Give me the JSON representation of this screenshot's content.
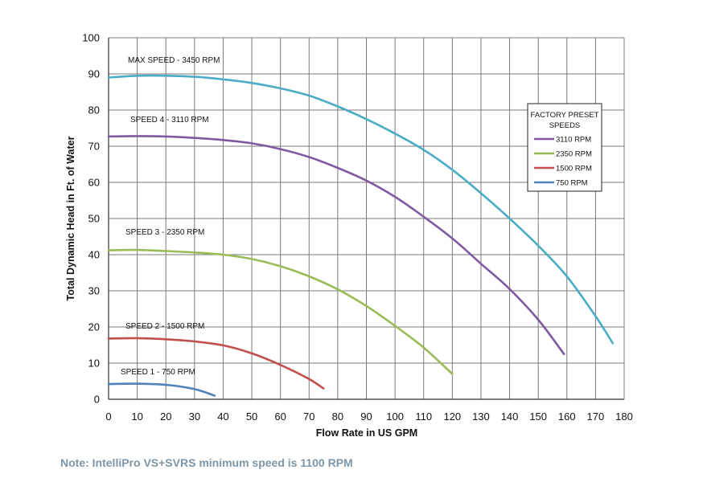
{
  "chart_data": {
    "type": "line",
    "xlabel": "Flow Rate in US GPM",
    "ylabel": "Total Dynamic Head in Ft. of Water",
    "xlim": [
      0,
      180
    ],
    "ylim": [
      0,
      100
    ],
    "xticks": [
      0,
      10,
      20,
      30,
      40,
      50,
      60,
      70,
      80,
      90,
      100,
      110,
      120,
      130,
      140,
      150,
      160,
      170,
      180
    ],
    "yticks": [
      0,
      10,
      20,
      30,
      40,
      50,
      60,
      70,
      80,
      90,
      100
    ],
    "grid": true,
    "legend": {
      "title_line1": "FACTORY PRESET",
      "title_line2": "SPEEDS",
      "placement": "top-right",
      "entries": [
        {
          "label": "3110 RPM",
          "color": "#7f5aa2"
        },
        {
          "label": "2350 RPM",
          "color": "#9bbb59"
        },
        {
          "label": "1500 RPM",
          "color": "#c0504d"
        },
        {
          "label": "750 RPM",
          "color": "#4f81bd"
        }
      ]
    },
    "series": [
      {
        "name": "MAX SPEED - 3450 RPM",
        "color": "#4bacc6",
        "x": [
          0,
          10,
          20,
          30,
          40,
          50,
          60,
          70,
          80,
          90,
          100,
          110,
          120,
          130,
          140,
          150,
          160,
          170,
          176
        ],
        "y": [
          89,
          89.5,
          89.5,
          89.2,
          88.5,
          87.5,
          86,
          84,
          81,
          77.5,
          73.5,
          69,
          63.5,
          57,
          50,
          42.5,
          34,
          23,
          15.5
        ]
      },
      {
        "name": "SPEED 4 - 3110 RPM",
        "color": "#7f5aa2",
        "x": [
          0,
          10,
          20,
          30,
          40,
          50,
          60,
          70,
          80,
          90,
          100,
          110,
          120,
          130,
          140,
          150,
          159
        ],
        "y": [
          72.7,
          72.8,
          72.7,
          72.3,
          71.7,
          70.8,
          69.2,
          67,
          64,
          60.5,
          56,
          50.5,
          44.5,
          37.5,
          30.5,
          22,
          12.5
        ]
      },
      {
        "name": "SPEED 3 - 2350 RPM",
        "color": "#9bbb59",
        "x": [
          0,
          10,
          20,
          30,
          40,
          50,
          60,
          70,
          80,
          90,
          100,
          110,
          120
        ],
        "y": [
          41.2,
          41.3,
          41,
          40.6,
          40,
          38.8,
          36.8,
          34,
          30.4,
          25.8,
          20.3,
          14.3,
          7
        ]
      },
      {
        "name": "SPEED 2 - 1500 RPM",
        "color": "#c0504d",
        "x": [
          0,
          10,
          20,
          30,
          40,
          50,
          60,
          70,
          75
        ],
        "y": [
          16.8,
          16.9,
          16.6,
          16,
          14.9,
          12.7,
          9.5,
          5.6,
          3
        ]
      },
      {
        "name": "SPEED 1 - 750 RPM",
        "color": "#4f81bd",
        "x": [
          0,
          10,
          20,
          30,
          37
        ],
        "y": [
          4.2,
          4.3,
          4,
          2.8,
          1
        ]
      }
    ],
    "curve_labels": [
      {
        "text": "MAX SPEED - 3450 RPM",
        "series": 0
      },
      {
        "text": "SPEED 4 - 3110 RPM",
        "series": 1
      },
      {
        "text": "SPEED 3 - 2350 RPM",
        "series": 2
      },
      {
        "text": "SPEED 2 - 1500 RPM",
        "series": 3
      },
      {
        "text": "SPEED 1 - 750 RPM",
        "series": 4
      }
    ]
  },
  "note": "Note:  IntelliPro VS+SVRS minimum speed is 1100 RPM"
}
